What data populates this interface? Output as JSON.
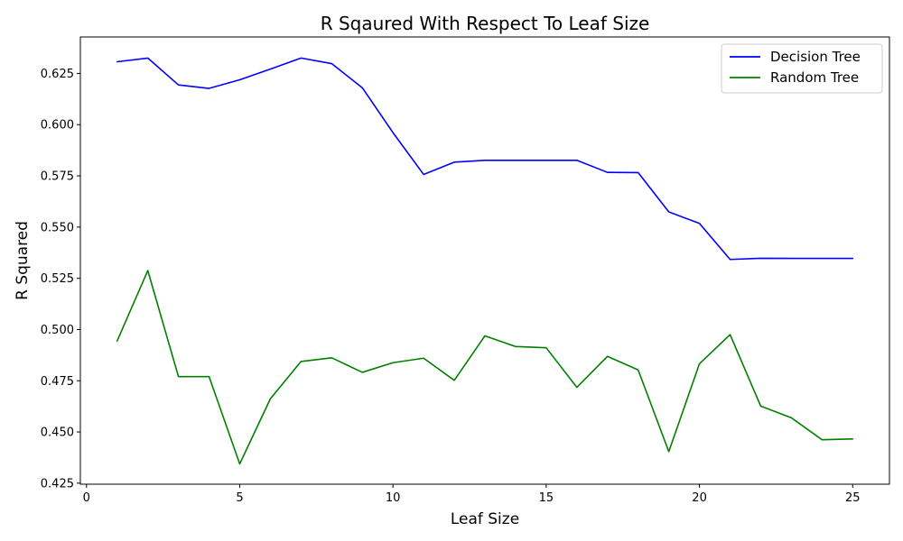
{
  "chart_data": {
    "type": "line",
    "title": "R Sqaured With Respect To Leaf Size",
    "xlabel": "Leaf Size",
    "ylabel": "R Squared",
    "xlim": [
      -0.2,
      26.2
    ],
    "ylim": [
      0.4245,
      0.6428
    ],
    "xticks": [
      0,
      5,
      10,
      15,
      20,
      25
    ],
    "yticks": [
      0.425,
      0.45,
      0.475,
      0.5,
      0.525,
      0.55,
      0.575,
      0.6,
      0.625
    ],
    "xtick_labels": [
      "0",
      "5",
      "10",
      "15",
      "20",
      "25"
    ],
    "ytick_labels": [
      "0.425",
      "0.450",
      "0.475",
      "0.500",
      "0.525",
      "0.550",
      "0.575",
      "0.600",
      "0.625"
    ],
    "grid": false,
    "legend_position": "top-right",
    "x": [
      1,
      2,
      3,
      4,
      5,
      6,
      7,
      8,
      9,
      10,
      11,
      12,
      13,
      14,
      15,
      16,
      17,
      18,
      19,
      20,
      21,
      22,
      23,
      24,
      25
    ],
    "series": [
      {
        "name": "Decision Tree",
        "color": "#0000ff",
        "values": [
          0.6307,
          0.6325,
          0.6194,
          0.6177,
          0.6219,
          0.6271,
          0.6325,
          0.6298,
          0.618,
          0.5961,
          0.5757,
          0.5817,
          0.5826,
          0.5826,
          0.5826,
          0.5826,
          0.5767,
          0.5766,
          0.5574,
          0.5518,
          0.5342,
          0.5348,
          0.5347,
          0.5347,
          0.5347
        ]
      },
      {
        "name": "Random Tree",
        "color": "#008000",
        "values": [
          0.4944,
          0.5288,
          0.477,
          0.477,
          0.4344,
          0.4662,
          0.4844,
          0.4862,
          0.4791,
          0.4838,
          0.486,
          0.4752,
          0.4969,
          0.4917,
          0.4911,
          0.4718,
          0.4869,
          0.4803,
          0.4404,
          0.4833,
          0.4975,
          0.4626,
          0.4569,
          0.4462,
          0.4466
        ]
      }
    ]
  }
}
